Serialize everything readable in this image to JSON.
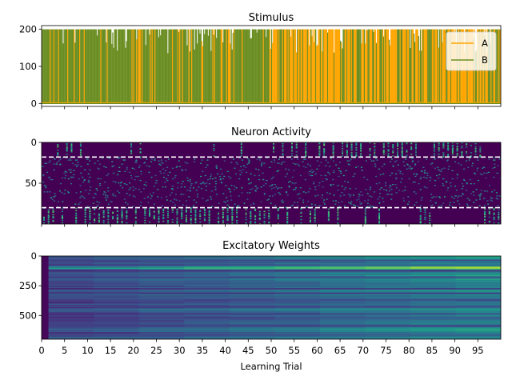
{
  "chart_data": [
    {
      "type": "line",
      "title": "Stimulus",
      "xlabel": "",
      "ylabel": "",
      "xlim": [
        0,
        100
      ],
      "ylim": [
        -8,
        210
      ],
      "yticks": [
        0,
        100,
        200
      ],
      "series": [
        {
          "name": "A",
          "color": "#ffa500",
          "amplitude": 200,
          "rendering": "on/off pulse train across trials"
        },
        {
          "name": "B",
          "color": "#6b8e23",
          "amplitude": 200,
          "rendering": "on/off pulse train across trials"
        }
      ],
      "legend": {
        "location": "top-right",
        "entries": [
          "A",
          "B"
        ]
      }
    },
    {
      "type": "heatmap",
      "title": "Neuron Activity",
      "colormap": "viridis",
      "ylim": [
        100,
        0
      ],
      "yticks": [
        0,
        50
      ],
      "reference_lines": [
        {
          "y": 18,
          "color": "#ffffff",
          "style": "dashed"
        },
        {
          "y": 80,
          "color": "#ffffff",
          "style": "dashed"
        }
      ]
    },
    {
      "type": "heatmap",
      "title": "Excitatory Weights",
      "colormap": "viridis",
      "ylim": [
        700,
        0
      ],
      "yticks": [
        0,
        250,
        500
      ]
    }
  ],
  "shared_x": {
    "xlabel": "Learning Trial",
    "xlim": [
      0,
      100
    ],
    "xticks": [
      0,
      5,
      10,
      15,
      20,
      25,
      30,
      35,
      40,
      45,
      50,
      55,
      60,
      65,
      70,
      75,
      80,
      85,
      90,
      95
    ]
  }
}
